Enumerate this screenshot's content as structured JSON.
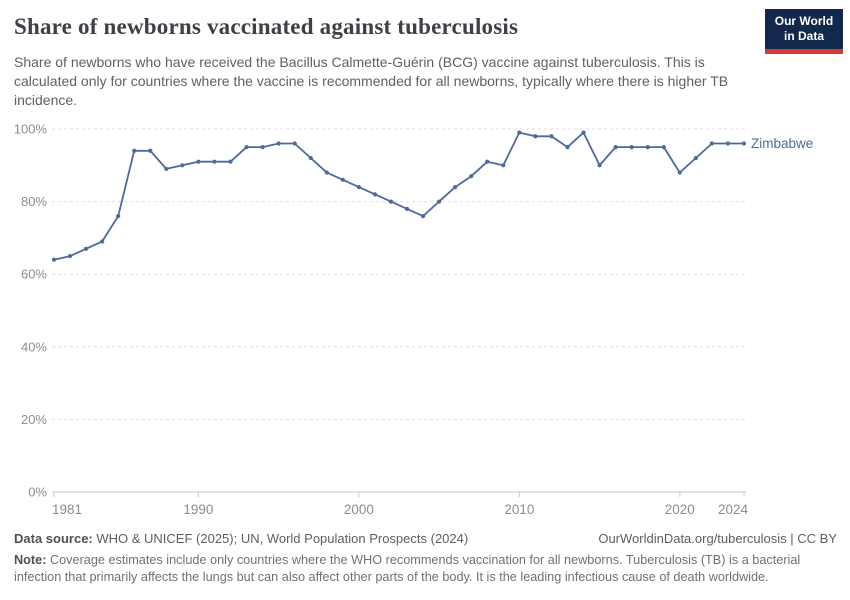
{
  "header": {
    "title": "Share of newborns vaccinated against tuberculosis",
    "subtitle": "Share of newborns who have received the Bacillus Calmette-Guérin (BCG) vaccine against tuberculosis. This is calculated only for countries where the vaccine is recommended for all newborns, typically where there is higher TB incidence.",
    "logo": {
      "line1": "Our World",
      "line2": "in Data"
    }
  },
  "chart_data": {
    "type": "line",
    "title": "Share of newborns vaccinated against tuberculosis",
    "x": [
      1981,
      1982,
      1983,
      1984,
      1985,
      1986,
      1987,
      1988,
      1989,
      1990,
      1991,
      1992,
      1993,
      1994,
      1995,
      1996,
      1997,
      1998,
      1999,
      2000,
      2001,
      2002,
      2003,
      2004,
      2005,
      2006,
      2007,
      2008,
      2009,
      2010,
      2011,
      2012,
      2013,
      2014,
      2015,
      2016,
      2017,
      2018,
      2019,
      2020,
      2021,
      2022,
      2023,
      2024
    ],
    "series": [
      {
        "name": "Zimbabwe",
        "color": "#4c6a9c",
        "values": [
          64,
          65,
          67,
          69,
          76,
          94,
          94,
          89,
          90,
          91,
          91,
          91,
          95,
          95,
          96,
          96,
          92,
          88,
          86,
          84,
          82,
          80,
          78,
          76,
          80,
          84,
          87,
          91,
          90,
          99,
          98,
          98,
          95,
          99,
          90,
          95,
          95,
          95,
          95,
          88,
          92,
          96,
          96,
          96
        ]
      }
    ],
    "xlabel": "",
    "ylabel": "",
    "ylim": [
      0,
      100
    ],
    "yticks": [
      0,
      20,
      40,
      60,
      80,
      100
    ],
    "ytick_suffix": "%",
    "xticks": [
      1981,
      1990,
      2000,
      2010,
      2020,
      2024
    ],
    "grid": "horizontal-dashed",
    "legend": "entity-label-at-line-end",
    "entity_label": "Zimbabwe"
  },
  "colors": {
    "line": "#4c6a9c",
    "grid": "#dddddd",
    "axis": "#c9c9c9",
    "tick_label": "#8d8d8d",
    "entity_label": "#4c6a9c"
  },
  "footer": {
    "datasource_label": "Data source:",
    "datasource_text": " WHO & UNICEF (2025); UN, World Population Prospects (2024)",
    "link": "OurWorldinData.org/tuberculosis | CC BY",
    "note_label": "Note:",
    "note_text": " Coverage estimates include only countries where the WHO recommends vaccination for all newborns. Tuberculosis (TB) is a bacterial infection that primarily affects the lungs but can also affect other parts of the body. It is the leading infectious cause of death worldwide."
  }
}
